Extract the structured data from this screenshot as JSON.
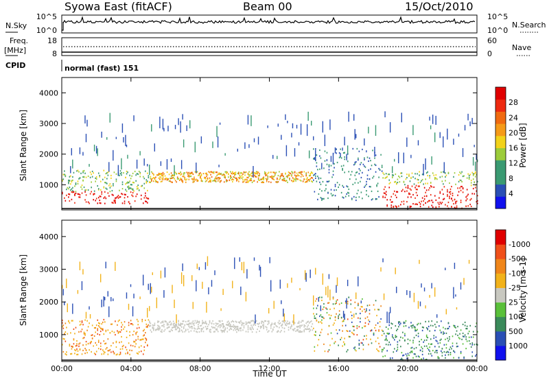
{
  "header": {
    "station": "Syowa East (fitACF)",
    "beam": "Beam 00",
    "date": "15/Oct/2010"
  },
  "noise_panel": {
    "left_label": "N.Sky",
    "right_label": "N.Search",
    "left_ticks": [
      "10^5",
      "10^0"
    ],
    "right_ticks": [
      "10^5",
      "10^0"
    ]
  },
  "freq_panel": {
    "left_label_line1": "Freq.",
    "left_label_line2": "[MHz]",
    "right_label": "Nave",
    "left_ticks": [
      "18",
      "8"
    ],
    "right_ticks": [
      "60",
      "0"
    ]
  },
  "cpid": {
    "label": "CPID",
    "value": "normal (fast) 151"
  },
  "chart_data": [
    {
      "type": "heatmap",
      "title": "",
      "ylabel": "Slant Range [km]",
      "ylim": [
        180,
        4500
      ],
      "yticks": [
        "1000",
        "2000",
        "3000",
        "4000"
      ],
      "colorbar_label": "Power [dB]",
      "colorbar_ticks": [
        "4",
        "8",
        "12",
        "16",
        "20",
        "24",
        "28"
      ],
      "colorbar_colors": [
        "#1010ee",
        "#2a4fb5",
        "#3a9a72",
        "#3a9a72",
        "#9ccc3a",
        "#f2d21a",
        "#f59a18",
        "#f06a10",
        "#ee2a10",
        "#e00000"
      ]
    },
    {
      "type": "heatmap",
      "title": "",
      "xlabel": "Time UT",
      "ylabel": "Slant Range [km]",
      "ylim": [
        180,
        4500
      ],
      "xticks": [
        "00:00",
        "04:00",
        "08:00",
        "12:00",
        "16:00",
        "20:00",
        "00:00"
      ],
      "yticks": [
        "1000",
        "2000",
        "3000",
        "4000"
      ],
      "colorbar_label": "Velocity [m s-1]",
      "colorbar_ticks": [
        "1000",
        "500",
        "100",
        "25",
        "-25",
        "-100",
        "-500",
        "-1000"
      ],
      "colorbar_colors": [
        "#1010ee",
        "#2a4fb5",
        "#3a8a5a",
        "#5ac03a",
        "#c8c8c0",
        "#f2b21a",
        "#f0861a",
        "#f0501a",
        "#e00000"
      ]
    }
  ]
}
